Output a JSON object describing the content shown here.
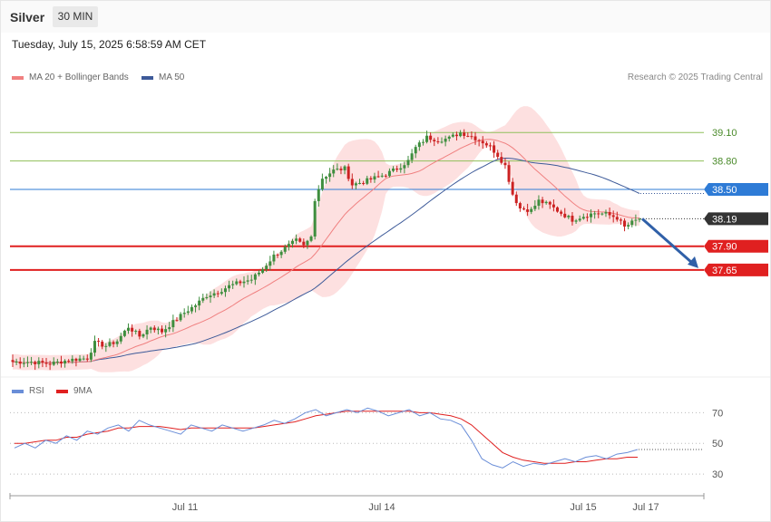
{
  "header": {
    "instrument": "Silver",
    "timeframe": "30 MIN",
    "datetime": "Tuesday, July 15, 2025 6:58:59 AM CET"
  },
  "legend": {
    "ma20_label": "MA 20 + Bollinger Bands",
    "ma50_label": "MA 50",
    "copyright": "Research © 2025 Trading Central"
  },
  "rsi_legend": {
    "rsi_label": "RSI",
    "ma_label": "9MA"
  },
  "colors": {
    "bull": "#3e8e3e",
    "bear": "#cc2222",
    "ma20": "#f08080",
    "band": "#fde0e0",
    "ma50": "#3d5a99",
    "resistance": "#8fbf5a",
    "pivot": "#2e7bd6",
    "support": "#e02020",
    "current": "#333333",
    "arrow": "#3060a8",
    "rsi": "#6a8ed8",
    "rsi_ma": "#e02020"
  },
  "chart_data": [
    {
      "type": "candlestick",
      "title": "",
      "x_ticks": [
        "Jul 11",
        "Jul 14",
        "Jul 15",
        "Jul 17"
      ],
      "ylim": [
        36.53,
        39.59
      ],
      "series": [
        {
          "name": "MA 20 + Bollinger Bands"
        },
        {
          "name": "MA 50"
        }
      ],
      "levels": [
        {
          "value": 39.1,
          "label": "39.10",
          "kind": "resistance"
        },
        {
          "value": 38.8,
          "label": "38.80",
          "kind": "resistance"
        },
        {
          "value": 38.5,
          "label": "38.50",
          "kind": "pivot"
        },
        {
          "value": 38.19,
          "label": "38.19",
          "kind": "current"
        },
        {
          "value": 37.9,
          "label": "37.90",
          "kind": "support"
        },
        {
          "value": 37.65,
          "label": "37.65",
          "kind": "support"
        }
      ],
      "projection": {
        "from": 38.19,
        "to": 37.65,
        "direction": "down"
      },
      "close_path": [
        [
          0,
          36.68
        ],
        [
          5,
          36.68
        ],
        [
          10,
          36.66
        ],
        [
          15,
          36.7
        ],
        [
          20,
          36.72
        ],
        [
          22,
          36.88
        ],
        [
          25,
          36.85
        ],
        [
          28,
          36.9
        ],
        [
          31,
          37.05
        ],
        [
          34,
          36.95
        ],
        [
          37,
          37.05
        ],
        [
          40,
          37.0
        ],
        [
          43,
          37.1
        ],
        [
          46,
          37.2
        ],
        [
          49,
          37.28
        ],
        [
          52,
          37.38
        ],
        [
          55,
          37.42
        ],
        [
          58,
          37.48
        ],
        [
          61,
          37.52
        ],
        [
          64,
          37.55
        ],
        [
          67,
          37.66
        ],
        [
          70,
          37.8
        ],
        [
          73,
          37.88
        ],
        [
          76,
          37.96
        ],
        [
          78,
          37.9
        ],
        [
          80,
          38.0
        ],
        [
          81,
          38.4
        ],
        [
          83,
          38.62
        ],
        [
          86,
          38.7
        ],
        [
          89,
          38.72
        ],
        [
          91,
          38.55
        ],
        [
          94,
          38.58
        ],
        [
          97,
          38.62
        ],
        [
          100,
          38.66
        ],
        [
          103,
          38.72
        ],
        [
          106,
          38.8
        ],
        [
          108,
          38.94
        ],
        [
          111,
          39.05
        ],
        [
          114,
          39.02
        ],
        [
          117,
          39.04
        ],
        [
          120,
          39.1
        ],
        [
          123,
          39.06
        ],
        [
          126,
          39.0
        ],
        [
          128,
          38.95
        ],
        [
          130,
          38.86
        ],
        [
          132,
          38.75
        ],
        [
          134,
          38.45
        ],
        [
          136,
          38.3
        ],
        [
          139,
          38.28
        ],
        [
          141,
          38.38
        ],
        [
          144,
          38.33
        ],
        [
          147,
          38.25
        ],
        [
          150,
          38.18
        ],
        [
          153,
          38.22
        ],
        [
          156,
          38.25
        ],
        [
          159,
          38.24
        ],
        [
          162,
          38.2
        ],
        [
          164,
          38.1
        ],
        [
          166,
          38.15
        ],
        [
          168,
          38.19
        ]
      ]
    },
    {
      "type": "line",
      "title": "",
      "ylim": [
        20,
        85
      ],
      "y_ticks": [
        70,
        50,
        30
      ],
      "series": [
        {
          "name": "RSI",
          "values": [
            47,
            50,
            47,
            52,
            50,
            55,
            52,
            58,
            56,
            60,
            62,
            58,
            65,
            62,
            60,
            58,
            56,
            62,
            60,
            58,
            62,
            60,
            58,
            60,
            62,
            65,
            63,
            66,
            70,
            72,
            68,
            70,
            72,
            70,
            73,
            71,
            68,
            70,
            72,
            68,
            70,
            66,
            65,
            62,
            52,
            40,
            36,
            34,
            38,
            35,
            37,
            36,
            38,
            40,
            38,
            41,
            42,
            40,
            43,
            44,
            46
          ]
        },
        {
          "name": "9MA",
          "values": [
            50,
            50,
            51,
            52,
            52,
            54,
            54,
            56,
            57,
            58,
            60,
            60,
            61,
            61,
            61,
            60,
            59,
            60,
            60,
            60,
            60,
            60,
            60,
            60,
            61,
            62,
            63,
            64,
            66,
            68,
            69,
            70,
            71,
            71,
            71,
            71,
            71,
            71,
            71,
            70,
            70,
            69,
            68,
            66,
            62,
            56,
            50,
            44,
            41,
            39,
            38,
            37,
            37,
            37,
            38,
            38,
            39,
            40,
            40,
            41,
            41
          ]
        }
      ]
    }
  ]
}
